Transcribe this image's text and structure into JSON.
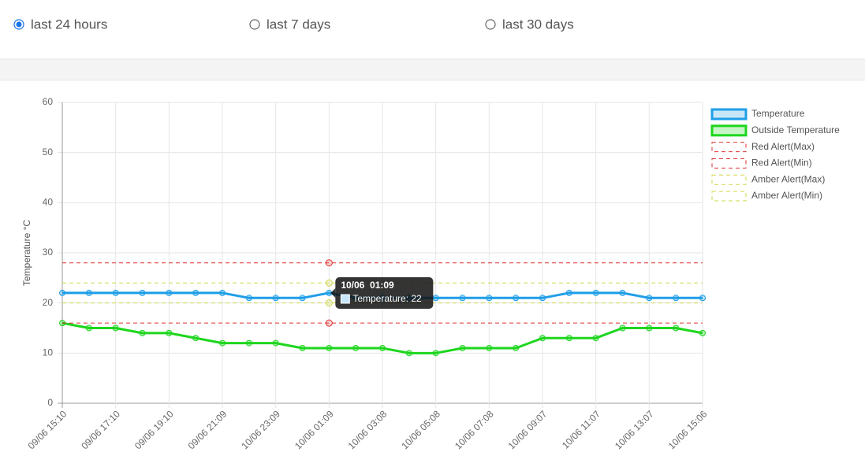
{
  "options": [
    "last 24 hours",
    "last 7 days",
    "last 30 days"
  ],
  "selected": 0,
  "chart_data": {
    "type": "line",
    "y_label": "Temperature °C",
    "categories": [
      "09/06 15:10",
      null,
      "09/06 17:10",
      null,
      "09/06 19:10",
      null,
      "09/06 21:09",
      null,
      "10/06 23:09",
      null,
      "10/06 01:09",
      null,
      "10/06 03:08",
      null,
      "10/06 05:08",
      null,
      "10/06 07:08",
      null,
      "10/06 09:07",
      null,
      "10/06 11:07",
      null,
      "10/06 13:07",
      null,
      "10/06 15:06"
    ],
    "ylim": [
      0,
      60
    ],
    "yticks": [
      0,
      10,
      20,
      30,
      40,
      50,
      60
    ],
    "grid": true,
    "series": [
      {
        "name": "Temperature",
        "color": "#1e9ee8",
        "values": [
          22,
          22,
          22,
          22,
          22,
          22,
          22,
          21,
          21,
          21,
          22,
          21,
          21,
          21,
          21,
          21,
          21,
          21,
          21,
          22,
          22,
          22,
          21,
          21,
          21
        ]
      },
      {
        "name": "Outside Temperature",
        "color": "#1ed61e",
        "values": [
          16,
          15,
          15,
          14,
          14,
          13,
          12,
          12,
          12,
          11,
          11,
          11,
          11,
          10,
          10,
          11,
          11,
          11,
          13,
          13,
          13,
          15,
          15,
          15,
          14
        ]
      },
      {
        "name": "Red Alert(Max)",
        "color": "#e03030",
        "dashed": true,
        "values": [
          28,
          28,
          28,
          28,
          28,
          28,
          28,
          28,
          28,
          28,
          28,
          28,
          28,
          28,
          28,
          28,
          28,
          28,
          28,
          28,
          28,
          28,
          28,
          28,
          28
        ]
      },
      {
        "name": "Red Alert(Min)",
        "color": "#e03030",
        "dashed": true,
        "values": [
          16,
          16,
          16,
          16,
          16,
          16,
          16,
          16,
          16,
          16,
          16,
          16,
          16,
          16,
          16,
          16,
          16,
          16,
          16,
          16,
          16,
          16,
          16,
          16,
          16
        ]
      },
      {
        "name": "Amber Alert(Max)",
        "color": "#cfd84a",
        "dashed": true,
        "values": [
          24,
          24,
          24,
          24,
          24,
          24,
          24,
          24,
          24,
          24,
          24,
          24,
          24,
          24,
          24,
          24,
          24,
          24,
          24,
          24,
          24,
          24,
          24,
          24,
          24
        ]
      },
      {
        "name": "Amber Alert(Min)",
        "color": "#cfd84a",
        "dashed": true,
        "values": [
          20,
          20,
          20,
          20,
          20,
          20,
          20,
          20,
          20,
          20,
          20,
          20,
          20,
          20,
          20,
          20,
          20,
          20,
          20,
          20,
          20,
          20,
          20,
          20,
          20
        ]
      }
    ],
    "tooltip": {
      "index": 10,
      "title": "10/06  01:09",
      "label": "Temperature: 22"
    }
  }
}
